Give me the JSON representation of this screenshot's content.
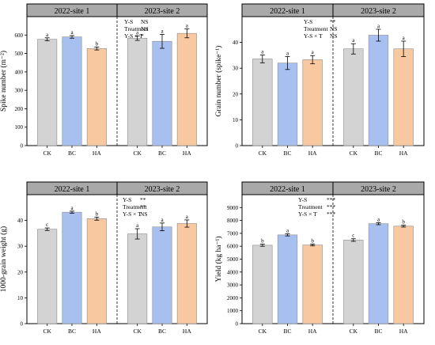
{
  "chart_data": [
    {
      "type": "bar",
      "title": "",
      "ylabel": "Spike number (m⁻²)",
      "ylim": [
        0,
        700
      ],
      "yticks": [
        0,
        100,
        200,
        300,
        400,
        500,
        600
      ],
      "ytick_labels": [
        "0",
        "100",
        "200",
        "300",
        "400",
        "500",
        "600"
      ],
      "panels": [
        {
          "header": "2022-site 1",
          "bars": [
            {
              "category": "CK",
              "value": 577,
              "error": 8,
              "letter": "a",
              "color": "#d3d3d3"
            },
            {
              "category": "BC",
              "value": 590,
              "error": 7,
              "letter": "a",
              "color": "#a7c0f0"
            },
            {
              "category": "HA",
              "value": 527,
              "error": 8,
              "letter": "b",
              "color": "#f8c9a0"
            }
          ]
        },
        {
          "header": "2023-site 2",
          "bars": [
            {
              "category": "CK",
              "value": 583,
              "error": 12,
              "letter": "a",
              "color": "#d3d3d3"
            },
            {
              "category": "BC",
              "value": 566,
              "error": 38,
              "letter": "a",
              "color": "#a7c0f0"
            },
            {
              "category": "HA",
              "value": 609,
              "error": 24,
              "letter": "a",
              "color": "#f8c9a0"
            }
          ]
        }
      ],
      "significance": [
        {
          "factor": "Y-S",
          "mark": "NS"
        },
        {
          "factor": "Treatment",
          "mark": "NS"
        },
        {
          "factor": "Y-S × T",
          "mark": "*"
        }
      ]
    },
    {
      "type": "bar",
      "title": "",
      "ylabel": "Grain number (spike⁻¹)",
      "ylim": [
        0,
        50
      ],
      "yticks": [
        0,
        10,
        20,
        30,
        40
      ],
      "ytick_labels": [
        "0",
        "10",
        "20",
        "30",
        "40"
      ],
      "panels": [
        {
          "header": "2022-site 1",
          "bars": [
            {
              "category": "CK",
              "value": 33.6,
              "error": 1.5,
              "letter": "a",
              "color": "#d3d3d3"
            },
            {
              "category": "BC",
              "value": 32.0,
              "error": 2.5,
              "letter": "a",
              "color": "#a7c0f0"
            },
            {
              "category": "HA",
              "value": 33.3,
              "error": 1.6,
              "letter": "a",
              "color": "#f8c9a0"
            }
          ]
        },
        {
          "header": "2023-site 2",
          "bars": [
            {
              "category": "CK",
              "value": 37.5,
              "error": 2.0,
              "letter": "a",
              "color": "#d3d3d3"
            },
            {
              "category": "BC",
              "value": 42.8,
              "error": 2.3,
              "letter": "a",
              "color": "#a7c0f0"
            },
            {
              "category": "HA",
              "value": 37.5,
              "error": 3.0,
              "letter": "a",
              "color": "#f8c9a0"
            }
          ]
        }
      ],
      "significance": [
        {
          "factor": "Y-S",
          "mark": "**"
        },
        {
          "factor": "Treatment",
          "mark": "NS"
        },
        {
          "factor": "Y-S × T",
          "mark": "NS"
        }
      ]
    },
    {
      "type": "bar",
      "title": "",
      "ylabel": "1000-grain weight (g)",
      "ylim": [
        0,
        50
      ],
      "yticks": [
        0,
        10,
        20,
        30,
        40
      ],
      "ytick_labels": [
        "0",
        "10",
        "20",
        "30",
        "40"
      ],
      "panels": [
        {
          "header": "2022-site 1",
          "bars": [
            {
              "category": "CK",
              "value": 36.6,
              "error": 0.5,
              "letter": "c",
              "color": "#d3d3d3"
            },
            {
              "category": "BC",
              "value": 43.2,
              "error": 0.4,
              "letter": "a",
              "color": "#a7c0f0"
            },
            {
              "category": "HA",
              "value": 40.7,
              "error": 0.6,
              "letter": "b",
              "color": "#f8c9a0"
            }
          ]
        },
        {
          "header": "2023-site 2",
          "bars": [
            {
              "category": "CK",
              "value": 34.8,
              "error": 2.0,
              "letter": "a",
              "color": "#d3d3d3"
            },
            {
              "category": "BC",
              "value": 37.5,
              "error": 1.5,
              "letter": "a",
              "color": "#a7c0f0"
            },
            {
              "category": "HA",
              "value": 38.8,
              "error": 1.4,
              "letter": "a",
              "color": "#f8c9a0"
            }
          ]
        }
      ],
      "significance": [
        {
          "factor": "Y-S",
          "mark": "**"
        },
        {
          "factor": "Treatment",
          "mark": "**"
        },
        {
          "factor": "Y-S × T",
          "mark": "NS"
        }
      ]
    },
    {
      "type": "bar",
      "title": "",
      "ylabel": "Yield (kg ha⁻¹)",
      "ylim": [
        0,
        10000
      ],
      "yticks": [
        0,
        1000,
        2000,
        3000,
        4000,
        5000,
        6000,
        7000,
        8000,
        9000
      ],
      "ytick_labels": [
        "0",
        "1000",
        "2000",
        "3000",
        "4000",
        "5000",
        "6000",
        "7000",
        "8000",
        "9000"
      ],
      "panels": [
        {
          "header": "2022-site 1",
          "bars": [
            {
              "category": "CK",
              "value": 6080,
              "error": 80,
              "letter": "b",
              "color": "#d3d3d3"
            },
            {
              "category": "BC",
              "value": 6880,
              "error": 80,
              "letter": "a",
              "color": "#a7c0f0"
            },
            {
              "category": "HA",
              "value": 6100,
              "error": 70,
              "letter": "b",
              "color": "#f8c9a0"
            }
          ]
        },
        {
          "header": "2023-site 2",
          "bars": [
            {
              "category": "CK",
              "value": 6480,
              "error": 100,
              "letter": "c",
              "color": "#d3d3d3"
            },
            {
              "category": "BC",
              "value": 7750,
              "error": 80,
              "letter": "a",
              "color": "#a7c0f0"
            },
            {
              "category": "HA",
              "value": 7560,
              "error": 70,
              "letter": "b",
              "color": "#f8c9a0"
            }
          ]
        }
      ],
      "significance": [
        {
          "factor": "Y-S",
          "mark": "***"
        },
        {
          "factor": "Treatment",
          "mark": "***"
        },
        {
          "factor": "Y-S × T",
          "mark": "***"
        }
      ]
    }
  ]
}
